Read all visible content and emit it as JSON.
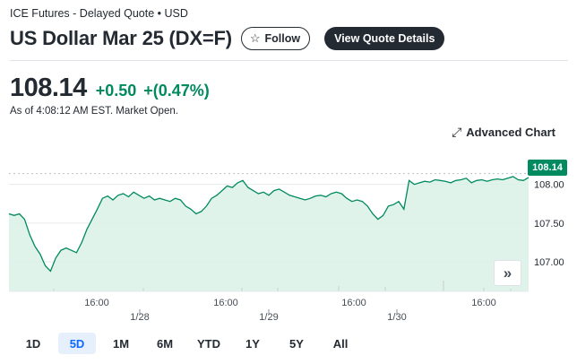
{
  "header": {
    "exchange_line": "ICE Futures - Delayed Quote • USD",
    "title": "US Dollar Mar 25 (DX=F)",
    "follow_label": "Follow",
    "view_quote_label": "View Quote Details"
  },
  "quote": {
    "price": "108.14",
    "change": "+0.50",
    "change_percent": "+(0.47%)",
    "as_of": "As of 4:08:12 AM EST. Market Open.",
    "up_color": "#008a5f"
  },
  "advanced_chart_label": "Advanced Chart",
  "ranges": [
    "1D",
    "5D",
    "1M",
    "6M",
    "YTD",
    "1Y",
    "5Y",
    "All"
  ],
  "active_range": "5D",
  "chart_data": {
    "type": "area",
    "price_label": "108.14",
    "y_ticks": [
      "108.00",
      "107.50",
      "107.00"
    ],
    "y_tick_values": [
      108.0,
      107.5,
      107.0
    ],
    "ylim": [
      106.62,
      108.32
    ],
    "time_labels": [
      "16:00",
      "16:00",
      "16:00",
      "16:00"
    ],
    "date_labels": [
      "1/28",
      "1/29",
      "1/30"
    ],
    "series": [
      {
        "x": [
          0,
          1,
          2,
          3,
          4,
          5,
          6,
          7,
          8,
          9,
          10,
          11,
          12,
          13,
          14,
          15,
          16,
          17,
          18,
          19,
          20,
          21,
          22,
          23,
          24,
          25,
          26,
          27,
          28,
          29,
          30,
          31,
          32,
          33,
          34,
          35,
          36,
          37,
          38,
          39,
          40,
          41,
          42,
          43,
          44,
          45,
          46,
          47,
          48,
          49,
          50,
          51,
          52,
          53,
          54,
          55,
          56,
          57,
          58,
          59,
          60,
          61,
          62,
          63,
          64,
          65,
          66,
          67,
          68,
          69,
          70,
          71,
          72,
          73,
          74,
          75,
          76,
          77,
          78,
          79,
          80,
          81,
          82,
          83,
          84,
          85,
          86,
          87,
          88,
          89,
          90,
          91,
          92,
          93,
          94,
          95,
          96,
          97,
          98,
          99,
          100
        ],
        "y": [
          107.62,
          107.6,
          107.62,
          107.55,
          107.35,
          107.2,
          107.1,
          106.95,
          106.88,
          107.05,
          107.15,
          107.18,
          107.15,
          107.12,
          107.25,
          107.42,
          107.55,
          107.68,
          107.82,
          107.85,
          107.8,
          107.86,
          107.88,
          107.84,
          107.9,
          107.86,
          107.82,
          107.85,
          107.8,
          107.82,
          107.8,
          107.78,
          107.82,
          107.8,
          107.72,
          107.68,
          107.62,
          107.65,
          107.72,
          107.82,
          107.86,
          107.92,
          107.98,
          107.96,
          108.02,
          108.05,
          107.96,
          107.92,
          107.88,
          107.9,
          107.86,
          107.92,
          107.94,
          107.9,
          107.86,
          107.84,
          107.82,
          107.8,
          107.82,
          107.85,
          107.86,
          107.84,
          107.88,
          107.9,
          107.88,
          107.82,
          107.78,
          107.8,
          107.78,
          107.72,
          107.62,
          107.55,
          107.6,
          107.72,
          107.74,
          107.78,
          107.68,
          108.05,
          108.0,
          108.02,
          108.04,
          108.03,
          108.06,
          108.05,
          108.04,
          108.02,
          108.05,
          108.06,
          108.08,
          108.02,
          108.05,
          108.06,
          108.04,
          108.06,
          108.07,
          108.06,
          108.08,
          108.1,
          108.06,
          108.05,
          108.09
        ]
      }
    ],
    "grid": true,
    "line_color": "#008a5f",
    "fill_color": "#d9f1e8"
  }
}
